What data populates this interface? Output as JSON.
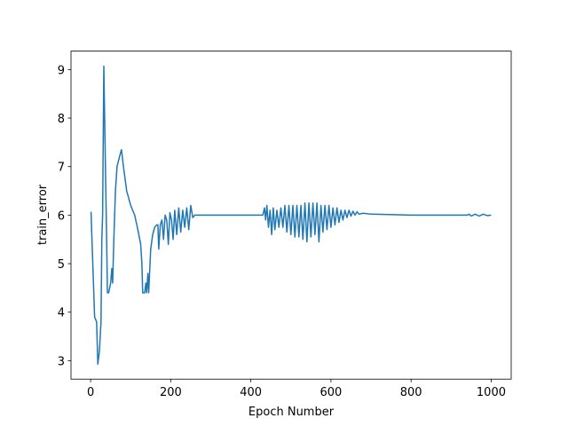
{
  "chart_data": {
    "type": "line",
    "xlabel": "Epoch Number",
    "ylabel": "train_error",
    "xlim": [
      -48.95,
      1049.95
    ],
    "ylim": [
      2.62,
      9.38
    ],
    "xticks": [
      0,
      200,
      400,
      600,
      800,
      1000
    ],
    "yticks": [
      3,
      4,
      5,
      6,
      7,
      8,
      9
    ],
    "series": [
      {
        "color": "#1f77b4",
        "x": [
          1,
          10,
          15,
          18,
          22,
          26,
          28,
          30,
          33,
          36,
          40,
          42,
          45,
          50,
          53,
          55,
          58,
          62,
          66,
          72,
          77,
          82,
          90,
          100,
          110,
          118,
          125,
          128,
          130,
          135,
          138,
          140,
          143,
          145,
          150,
          155,
          160,
          165,
          168,
          170,
          174,
          178,
          182,
          186,
          190,
          194,
          198,
          202,
          206,
          210,
          215,
          220,
          225,
          230,
          235,
          240,
          245,
          250,
          255,
          260,
          300,
          400,
          430,
          434,
          437,
          440,
          444,
          448,
          452,
          456,
          460,
          465,
          470,
          475,
          480,
          485,
          490,
          495,
          500,
          505,
          510,
          515,
          520,
          525,
          530,
          535,
          540,
          545,
          550,
          555,
          560,
          565,
          570,
          575,
          580,
          585,
          590,
          595,
          600,
          605,
          610,
          615,
          620,
          625,
          630,
          635,
          640,
          645,
          650,
          655,
          660,
          665,
          670,
          680,
          700,
          800,
          940,
          945,
          950,
          960,
          970,
          980,
          990,
          1000
        ],
        "values": [
          6.07,
          3.9,
          3.8,
          2.93,
          3.2,
          3.8,
          5.5,
          6.0,
          9.07,
          7.5,
          5.5,
          4.4,
          4.4,
          4.6,
          4.9,
          4.6,
          5.5,
          6.5,
          7.0,
          7.2,
          7.35,
          7.0,
          6.5,
          6.2,
          6.0,
          5.7,
          5.4,
          5.0,
          4.4,
          4.4,
          4.6,
          4.4,
          4.8,
          4.4,
          5.3,
          5.6,
          5.75,
          5.8,
          5.8,
          5.3,
          5.8,
          5.9,
          5.5,
          6.0,
          5.9,
          5.4,
          6.05,
          5.9,
          5.5,
          6.1,
          5.6,
          6.15,
          5.65,
          6.1,
          5.75,
          6.15,
          5.7,
          6.2,
          5.95,
          6.0,
          6.0,
          6.0,
          6.0,
          6.15,
          5.9,
          6.2,
          5.75,
          6.1,
          5.6,
          6.15,
          5.7,
          6.1,
          5.75,
          6.15,
          5.75,
          6.2,
          5.65,
          6.2,
          5.6,
          6.2,
          5.55,
          6.2,
          5.55,
          6.2,
          5.5,
          6.25,
          5.45,
          6.25,
          5.55,
          6.25,
          5.6,
          6.25,
          5.45,
          6.2,
          5.65,
          6.2,
          5.7,
          6.2,
          5.75,
          6.15,
          5.8,
          6.15,
          5.85,
          6.1,
          5.9,
          6.1,
          5.95,
          6.1,
          5.98,
          6.08,
          6.0,
          6.07,
          6.02,
          6.04,
          6.02,
          6.0,
          6.0,
          6.02,
          5.98,
          6.02,
          5.98,
          6.02,
          5.99,
          6.0
        ]
      }
    ]
  }
}
